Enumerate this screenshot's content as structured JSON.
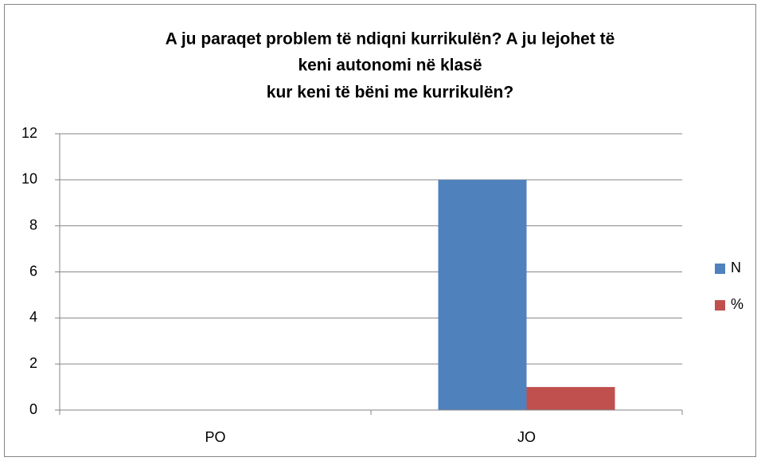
{
  "chart_data": {
    "type": "bar",
    "title": [
      "A ju paraqet problem të ndiqni kurrikulën? A ju lejohet të",
      "keni autonomi në klasë",
      "kur keni të bëni me kurrikulën?"
    ],
    "categories": [
      "PO",
      "JO"
    ],
    "series": [
      {
        "name": "N",
        "color": "#4f81bd",
        "values": [
          0,
          10
        ]
      },
      {
        "name": "%",
        "color": "#c0504d",
        "values": [
          0,
          1
        ]
      }
    ],
    "ylim": [
      0,
      12
    ],
    "yticks": [
      0,
      2,
      4,
      6,
      8,
      10,
      12
    ],
    "grid": true,
    "legend": "right"
  }
}
